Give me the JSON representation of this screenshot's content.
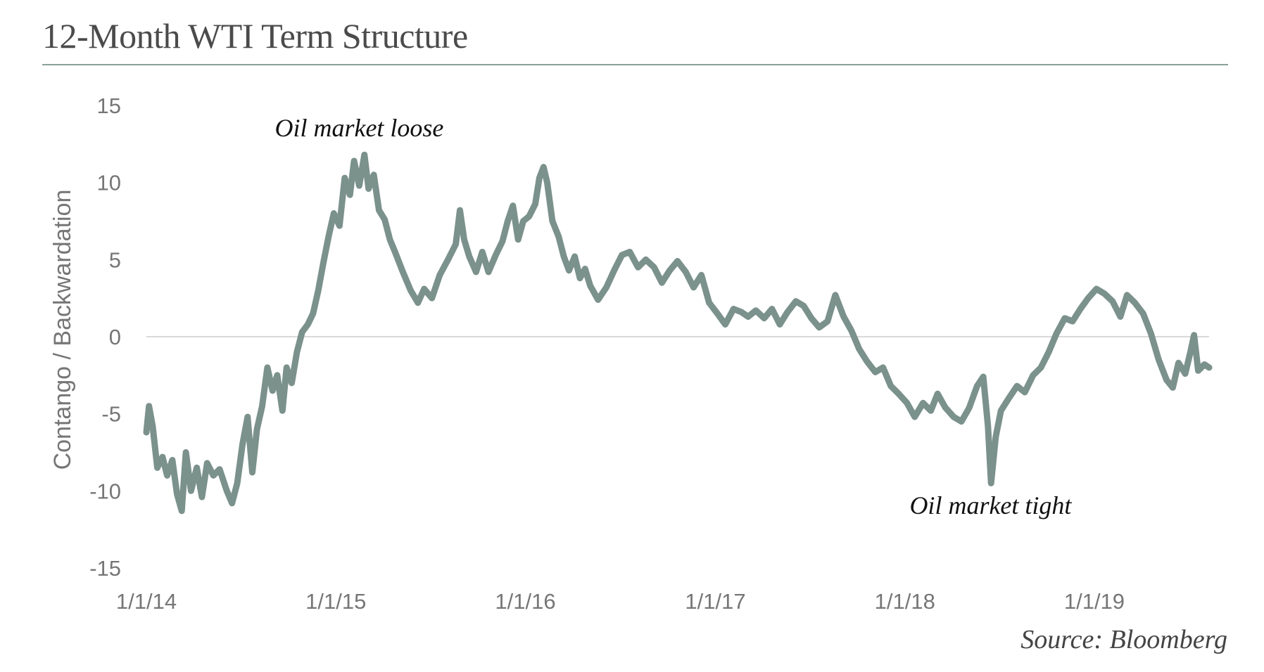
{
  "title": "12-Month WTI Term Structure",
  "source": "Source: Bloomberg",
  "colors": {
    "line": "#7b918c",
    "zero_line": "#d9d9d9",
    "rule": "#8aa19b",
    "text": "#767676"
  },
  "chart_data": {
    "type": "line",
    "title": "12-Month WTI Term Structure",
    "ylabel": "Contango / Backwardation",
    "xlabel": "",
    "ylim": [
      -15,
      15
    ],
    "yticks": [
      15,
      10,
      5,
      0,
      -5,
      -10,
      -15
    ],
    "xlim": [
      "2014-01-01",
      "2019-08-10"
    ],
    "xticks": [
      "2014-01-01",
      "2015-01-01",
      "2016-01-01",
      "2017-01-01",
      "2018-01-01",
      "2019-01-01"
    ],
    "xtick_labels": [
      "1/1/14",
      "1/1/15",
      "1/1/16",
      "1/1/17",
      "1/1/18",
      "1/1/19"
    ],
    "grid": false,
    "reference_line": 0,
    "legend": "none",
    "annotations": [
      {
        "text": "Oil market loose",
        "x": "2015-02-15",
        "y": 13
      },
      {
        "text": "Oil market tight",
        "x": "2018-06-15",
        "y": -11.5
      }
    ],
    "series": [
      {
        "values": [
          {
            "x": "2014-01-01",
            "y": -6.2
          },
          {
            "x": "2014-01-06",
            "y": -4.5
          },
          {
            "x": "2014-01-13",
            "y": -5.8
          },
          {
            "x": "2014-01-22",
            "y": -8.5
          },
          {
            "x": "2014-02-01",
            "y": -7.8
          },
          {
            "x": "2014-02-10",
            "y": -9.0
          },
          {
            "x": "2014-02-20",
            "y": -8.0
          },
          {
            "x": "2014-03-01",
            "y": -10.2
          },
          {
            "x": "2014-03-10",
            "y": -11.3
          },
          {
            "x": "2014-03-18",
            "y": -7.5
          },
          {
            "x": "2014-03-28",
            "y": -10.0
          },
          {
            "x": "2014-04-08",
            "y": -8.5
          },
          {
            "x": "2014-04-18",
            "y": -10.4
          },
          {
            "x": "2014-04-28",
            "y": -8.2
          },
          {
            "x": "2014-05-10",
            "y": -9.0
          },
          {
            "x": "2014-05-22",
            "y": -8.6
          },
          {
            "x": "2014-06-05",
            "y": -10.0
          },
          {
            "x": "2014-06-15",
            "y": -10.8
          },
          {
            "x": "2014-06-25",
            "y": -9.5
          },
          {
            "x": "2014-07-05",
            "y": -7.0
          },
          {
            "x": "2014-07-15",
            "y": -5.2
          },
          {
            "x": "2014-07-24",
            "y": -8.8
          },
          {
            "x": "2014-08-02",
            "y": -6.0
          },
          {
            "x": "2014-08-12",
            "y": -4.5
          },
          {
            "x": "2014-08-22",
            "y": -2.0
          },
          {
            "x": "2014-09-01",
            "y": -3.5
          },
          {
            "x": "2014-09-10",
            "y": -2.5
          },
          {
            "x": "2014-09-20",
            "y": -4.8
          },
          {
            "x": "2014-09-28",
            "y": -2.0
          },
          {
            "x": "2014-10-08",
            "y": -3.0
          },
          {
            "x": "2014-10-18",
            "y": -1.0
          },
          {
            "x": "2014-10-28",
            "y": 0.3
          },
          {
            "x": "2014-11-08",
            "y": 0.8
          },
          {
            "x": "2014-11-18",
            "y": 1.5
          },
          {
            "x": "2014-11-28",
            "y": 3.0
          },
          {
            "x": "2014-12-08",
            "y": 4.8
          },
          {
            "x": "2014-12-18",
            "y": 6.5
          },
          {
            "x": "2014-12-28",
            "y": 8.0
          },
          {
            "x": "2015-01-08",
            "y": 7.2
          },
          {
            "x": "2015-01-18",
            "y": 10.3
          },
          {
            "x": "2015-01-28",
            "y": 9.2
          },
          {
            "x": "2015-02-05",
            "y": 11.4
          },
          {
            "x": "2015-02-15",
            "y": 9.8
          },
          {
            "x": "2015-02-25",
            "y": 11.8
          },
          {
            "x": "2015-03-05",
            "y": 9.6
          },
          {
            "x": "2015-03-15",
            "y": 10.5
          },
          {
            "x": "2015-03-25",
            "y": 8.2
          },
          {
            "x": "2015-04-05",
            "y": 7.6
          },
          {
            "x": "2015-04-15",
            "y": 6.3
          },
          {
            "x": "2015-04-25",
            "y": 5.5
          },
          {
            "x": "2015-05-10",
            "y": 4.2
          },
          {
            "x": "2015-05-25",
            "y": 3.0
          },
          {
            "x": "2015-06-08",
            "y": 2.2
          },
          {
            "x": "2015-06-20",
            "y": 3.1
          },
          {
            "x": "2015-07-05",
            "y": 2.5
          },
          {
            "x": "2015-07-20",
            "y": 4.0
          },
          {
            "x": "2015-08-05",
            "y": 5.0
          },
          {
            "x": "2015-08-20",
            "y": 6.0
          },
          {
            "x": "2015-08-28",
            "y": 8.2
          },
          {
            "x": "2015-09-05",
            "y": 6.3
          },
          {
            "x": "2015-09-15",
            "y": 5.2
          },
          {
            "x": "2015-09-28",
            "y": 4.2
          },
          {
            "x": "2015-10-10",
            "y": 5.5
          },
          {
            "x": "2015-10-22",
            "y": 4.2
          },
          {
            "x": "2015-11-05",
            "y": 5.3
          },
          {
            "x": "2015-11-18",
            "y": 6.2
          },
          {
            "x": "2015-11-28",
            "y": 7.5
          },
          {
            "x": "2015-12-08",
            "y": 8.5
          },
          {
            "x": "2015-12-18",
            "y": 6.3
          },
          {
            "x": "2015-12-28",
            "y": 7.5
          },
          {
            "x": "2016-01-08",
            "y": 7.8
          },
          {
            "x": "2016-01-20",
            "y": 8.6
          },
          {
            "x": "2016-01-28",
            "y": 10.3
          },
          {
            "x": "2016-02-05",
            "y": 11.0
          },
          {
            "x": "2016-02-12",
            "y": 10.0
          },
          {
            "x": "2016-02-22",
            "y": 7.5
          },
          {
            "x": "2016-03-05",
            "y": 6.5
          },
          {
            "x": "2016-03-15",
            "y": 5.2
          },
          {
            "x": "2016-03-25",
            "y": 4.3
          },
          {
            "x": "2016-04-05",
            "y": 5.2
          },
          {
            "x": "2016-04-15",
            "y": 3.8
          },
          {
            "x": "2016-04-25",
            "y": 4.4
          },
          {
            "x": "2016-05-05",
            "y": 3.3
          },
          {
            "x": "2016-05-20",
            "y": 2.4
          },
          {
            "x": "2016-06-05",
            "y": 3.2
          },
          {
            "x": "2016-06-20",
            "y": 4.3
          },
          {
            "x": "2016-07-05",
            "y": 5.3
          },
          {
            "x": "2016-07-20",
            "y": 5.5
          },
          {
            "x": "2016-08-05",
            "y": 4.5
          },
          {
            "x": "2016-08-20",
            "y": 5.0
          },
          {
            "x": "2016-09-05",
            "y": 4.5
          },
          {
            "x": "2016-09-20",
            "y": 3.5
          },
          {
            "x": "2016-10-05",
            "y": 4.3
          },
          {
            "x": "2016-10-20",
            "y": 4.9
          },
          {
            "x": "2016-11-05",
            "y": 4.2
          },
          {
            "x": "2016-11-20",
            "y": 3.2
          },
          {
            "x": "2016-12-05",
            "y": 4.0
          },
          {
            "x": "2016-12-20",
            "y": 2.2
          },
          {
            "x": "2017-01-05",
            "y": 1.5
          },
          {
            "x": "2017-01-20",
            "y": 0.8
          },
          {
            "x": "2017-02-05",
            "y": 1.8
          },
          {
            "x": "2017-02-20",
            "y": 1.6
          },
          {
            "x": "2017-03-05",
            "y": 1.3
          },
          {
            "x": "2017-03-20",
            "y": 1.7
          },
          {
            "x": "2017-04-05",
            "y": 1.2
          },
          {
            "x": "2017-04-20",
            "y": 1.8
          },
          {
            "x": "2017-05-05",
            "y": 0.8
          },
          {
            "x": "2017-05-20",
            "y": 1.6
          },
          {
            "x": "2017-06-05",
            "y": 2.3
          },
          {
            "x": "2017-06-20",
            "y": 2.0
          },
          {
            "x": "2017-07-05",
            "y": 1.2
          },
          {
            "x": "2017-07-20",
            "y": 0.6
          },
          {
            "x": "2017-08-05",
            "y": 1.0
          },
          {
            "x": "2017-08-20",
            "y": 2.7
          },
          {
            "x": "2017-09-05",
            "y": 1.3
          },
          {
            "x": "2017-09-20",
            "y": 0.4
          },
          {
            "x": "2017-10-05",
            "y": -0.8
          },
          {
            "x": "2017-10-20",
            "y": -1.6
          },
          {
            "x": "2017-11-05",
            "y": -2.3
          },
          {
            "x": "2017-11-20",
            "y": -2.0
          },
          {
            "x": "2017-12-05",
            "y": -3.2
          },
          {
            "x": "2017-12-20",
            "y": -3.7
          },
          {
            "x": "2018-01-05",
            "y": -4.3
          },
          {
            "x": "2018-01-20",
            "y": -5.2
          },
          {
            "x": "2018-02-05",
            "y": -4.3
          },
          {
            "x": "2018-02-20",
            "y": -4.8
          },
          {
            "x": "2018-03-05",
            "y": -3.7
          },
          {
            "x": "2018-03-20",
            "y": -4.6
          },
          {
            "x": "2018-04-05",
            "y": -5.2
          },
          {
            "x": "2018-04-20",
            "y": -5.5
          },
          {
            "x": "2018-05-05",
            "y": -4.6
          },
          {
            "x": "2018-05-20",
            "y": -3.2
          },
          {
            "x": "2018-06-01",
            "y": -2.6
          },
          {
            "x": "2018-06-10",
            "y": -5.8
          },
          {
            "x": "2018-06-16",
            "y": -9.5
          },
          {
            "x": "2018-06-25",
            "y": -6.5
          },
          {
            "x": "2018-07-05",
            "y": -4.8
          },
          {
            "x": "2018-07-20",
            "y": -4.0
          },
          {
            "x": "2018-08-05",
            "y": -3.2
          },
          {
            "x": "2018-08-20",
            "y": -3.6
          },
          {
            "x": "2018-09-05",
            "y": -2.5
          },
          {
            "x": "2018-09-20",
            "y": -2.0
          },
          {
            "x": "2018-10-05",
            "y": -1.0
          },
          {
            "x": "2018-10-20",
            "y": 0.2
          },
          {
            "x": "2018-11-05",
            "y": 1.2
          },
          {
            "x": "2018-11-20",
            "y": 1.0
          },
          {
            "x": "2018-12-05",
            "y": 1.8
          },
          {
            "x": "2018-12-20",
            "y": 2.5
          },
          {
            "x": "2019-01-05",
            "y": 3.1
          },
          {
            "x": "2019-01-20",
            "y": 2.8
          },
          {
            "x": "2019-02-05",
            "y": 2.3
          },
          {
            "x": "2019-02-20",
            "y": 1.3
          },
          {
            "x": "2019-03-05",
            "y": 2.7
          },
          {
            "x": "2019-03-20",
            "y": 2.2
          },
          {
            "x": "2019-04-05",
            "y": 1.5
          },
          {
            "x": "2019-04-20",
            "y": 0.2
          },
          {
            "x": "2019-05-05",
            "y": -1.5
          },
          {
            "x": "2019-05-20",
            "y": -2.8
          },
          {
            "x": "2019-06-01",
            "y": -3.3
          },
          {
            "x": "2019-06-12",
            "y": -1.7
          },
          {
            "x": "2019-06-25",
            "y": -2.4
          },
          {
            "x": "2019-07-05",
            "y": -1.0
          },
          {
            "x": "2019-07-12",
            "y": 0.1
          },
          {
            "x": "2019-07-20",
            "y": -2.2
          },
          {
            "x": "2019-08-01",
            "y": -1.8
          },
          {
            "x": "2019-08-10",
            "y": -2.0
          }
        ]
      }
    ]
  }
}
